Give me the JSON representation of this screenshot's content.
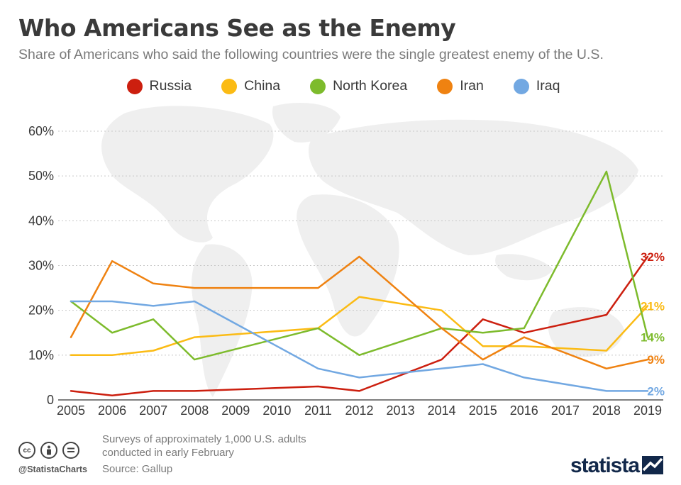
{
  "header": {
    "title": "Who Americans See as the Enemy",
    "subtitle": "Share of Americans who said the following countries were the single greatest enemy of the U.S."
  },
  "legend": [
    {
      "label": "Russia",
      "color": "#cc1f0f"
    },
    {
      "label": "China",
      "color": "#fbbb14"
    },
    {
      "label": "North Korea",
      "color": "#7dbb2c"
    },
    {
      "label": "Iran",
      "color": "#ef8211"
    },
    {
      "label": "Iraq",
      "color": "#72a8e2"
    }
  ],
  "chart_data": {
    "type": "line",
    "title": "Who Americans See as the Enemy",
    "subtitle": "Share of Americans who said the following countries were the single greatest enemy of the U.S.",
    "x": [
      "2005",
      "2006",
      "2007",
      "2008",
      "2009",
      "2010",
      "2011",
      "2012",
      "2013",
      "2014",
      "2015",
      "2016",
      "2017",
      "2018",
      "2019"
    ],
    "ylim": [
      0,
      60
    ],
    "yticks": [
      "0",
      "10%",
      "20%",
      "30%",
      "40%",
      "50%",
      "60%"
    ],
    "grid": true,
    "legend_position": "top",
    "series": [
      {
        "name": "Russia",
        "color": "#cc1f0f",
        "values": [
          2,
          1,
          2,
          2,
          null,
          null,
          3,
          2,
          null,
          9,
          18,
          15,
          null,
          19,
          32
        ],
        "end_label": "32%"
      },
      {
        "name": "China",
        "color": "#fbbb14",
        "values": [
          10,
          10,
          11,
          14,
          null,
          null,
          16,
          23,
          null,
          20,
          12,
          12,
          null,
          11,
          21
        ],
        "end_label": "21%"
      },
      {
        "name": "North Korea",
        "color": "#7dbb2c",
        "values": [
          22,
          15,
          18,
          9,
          null,
          null,
          16,
          10,
          null,
          16,
          15,
          16,
          null,
          51,
          14
        ],
        "end_label": "14%"
      },
      {
        "name": "Iran",
        "color": "#ef8211",
        "values": [
          14,
          31,
          26,
          25,
          null,
          null,
          25,
          32,
          null,
          16,
          9,
          14,
          null,
          7,
          9
        ],
        "end_label": "9%"
      },
      {
        "name": "Iraq",
        "color": "#72a8e2",
        "values": [
          22,
          22,
          21,
          22,
          null,
          null,
          7,
          5,
          null,
          7,
          8,
          5,
          null,
          2,
          2
        ],
        "end_label": "2%"
      }
    ]
  },
  "footer": {
    "note": "Surveys of approximately 1,000 U.S. adults conducted in early February",
    "source": "Source: Gallup",
    "handle": "@StatistaCharts",
    "brand": "statista"
  }
}
